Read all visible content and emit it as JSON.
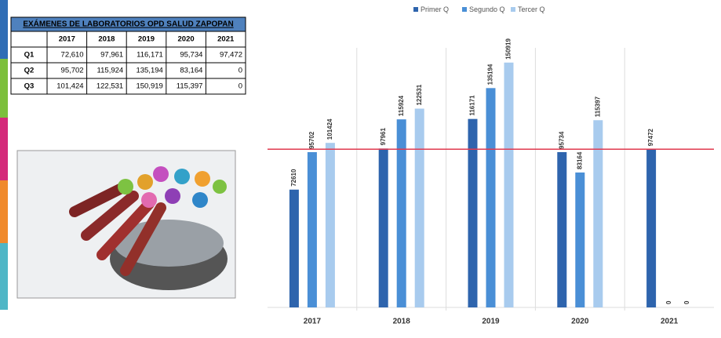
{
  "table": {
    "title": "EXÁMENES DE LABORATORIOS OPD SALUD ZAPOPAN",
    "columns": [
      "2017",
      "2018",
      "2019",
      "2020",
      "2021"
    ],
    "rows": [
      {
        "label": "Q1",
        "cells": [
          "72,610",
          "97,961",
          "116,171",
          "95,734",
          "97,472"
        ]
      },
      {
        "label": "Q2",
        "cells": [
          "95,702",
          "115,924",
          "135,194",
          "83,164",
          "0"
        ]
      },
      {
        "label": "Q3",
        "cells": [
          "101,424",
          "122,531",
          "150,919",
          "115,397",
          "0"
        ]
      }
    ]
  },
  "chart_data": {
    "type": "bar",
    "categories": [
      "2017",
      "2018",
      "2019",
      "2020",
      "2021"
    ],
    "series": [
      {
        "name": "Primer Q",
        "color": "#2e64ad",
        "values": [
          72610,
          97961,
          116171,
          95734,
          97472
        ]
      },
      {
        "name": "Segundo Q",
        "color": "#4a8fd6",
        "values": [
          95702,
          115924,
          135194,
          83164,
          0
        ]
      },
      {
        "name": "Tercer Q",
        "color": "#a8cbee",
        "values": [
          101424,
          122531,
          150919,
          115397,
          0
        ]
      }
    ],
    "ylim": [
      0,
      160000
    ],
    "reference_line": {
      "value": 97500,
      "color": "#e0394f"
    },
    "legend": "top"
  }
}
